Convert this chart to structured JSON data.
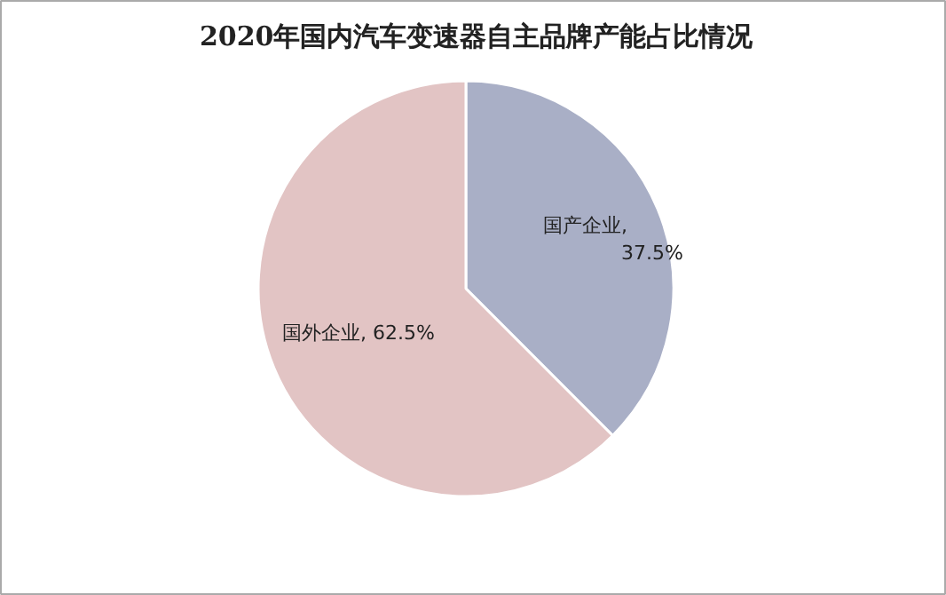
{
  "chart_data": {
    "type": "pie",
    "title": "2020年国内汽车变速器自主品牌产能占比情况",
    "categories": [
      "国产企业",
      "国外企业"
    ],
    "values": [
      37.5,
      62.5
    ],
    "colors": [
      "#a9afc6",
      "#e2c4c4"
    ],
    "value_labels": [
      ",\n37.5%",
      ", 62.5%"
    ],
    "legend": false
  }
}
